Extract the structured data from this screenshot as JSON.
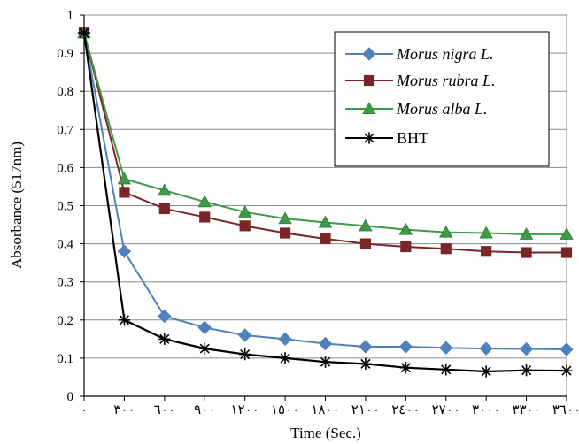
{
  "chart_data": {
    "type": "line",
    "title": "",
    "xlabel": "Time (Sec.)",
    "ylabel": "Absorbance (517nm)",
    "xlim": [
      0,
      3600
    ],
    "ylim": [
      0,
      1
    ],
    "grid": true,
    "legend_position": "top-right",
    "x": [
      0,
      300,
      600,
      900,
      1200,
      1500,
      1800,
      2100,
      2400,
      2700,
      3000,
      3300,
      3600
    ],
    "x_tick_labels": [
      "٠",
      "٣٠٠",
      "٦٠٠",
      "٩٠٠",
      "١٢٠٠",
      "١٥٠٠",
      "١٨٠٠",
      "٢١٠٠",
      "٢٤٠٠",
      "٢٧٠٠",
      "٣٠٠٠",
      "٣٣٠٠",
      "٣٦٠٠"
    ],
    "y_ticks": [
      0,
      0.1,
      0.2,
      0.3,
      0.4,
      0.5,
      0.6,
      0.7,
      0.8,
      0.9,
      1
    ],
    "y_tick_labels": [
      "0",
      "0.1",
      "0.2",
      "0.3",
      "0.4",
      "0.5",
      "0.6",
      "0.7",
      "0.8",
      "0.9",
      "1"
    ],
    "series": [
      {
        "name": "Morus nigra L.",
        "color": "#4f81bd",
        "marker": "diamond",
        "italic": true,
        "values": [
          0.953,
          0.38,
          0.21,
          0.18,
          0.16,
          0.15,
          0.138,
          0.13,
          0.13,
          0.127,
          0.125,
          0.124,
          0.123
        ]
      },
      {
        "name": "Morus rubra L.",
        "color": "#7b2626",
        "marker": "square",
        "italic": true,
        "values": [
          0.953,
          0.535,
          0.492,
          0.47,
          0.447,
          0.428,
          0.413,
          0.4,
          0.392,
          0.387,
          0.38,
          0.377,
          0.377
        ]
      },
      {
        "name": "Morus alba L.",
        "color": "#3d9a48",
        "marker": "triangle",
        "italic": true,
        "values": [
          0.953,
          0.57,
          0.54,
          0.51,
          0.483,
          0.466,
          0.456,
          0.447,
          0.437,
          0.43,
          0.428,
          0.425,
          0.425
        ]
      },
      {
        "name": "BHT",
        "color": "#000000",
        "marker": "asterisk",
        "italic": false,
        "values": [
          0.953,
          0.2,
          0.15,
          0.125,
          0.11,
          0.1,
          0.09,
          0.085,
          0.075,
          0.07,
          0.065,
          0.068,
          0.067
        ]
      }
    ]
  }
}
